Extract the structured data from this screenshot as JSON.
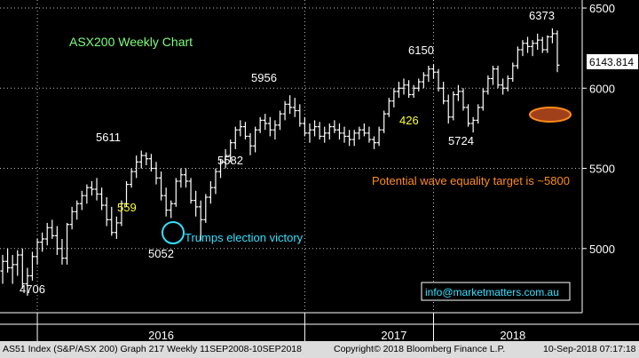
{
  "chart_data": {
    "type": "candlestick",
    "title": "ASX200 Weekly Chart",
    "ylim": [
      4600,
      6550
    ],
    "y_ticks": [
      5000,
      5500,
      6000,
      6500
    ],
    "y_tick_labels": [
      "5000",
      "5500",
      "6000",
      "6500"
    ],
    "x_tick_labels": [
      "2016",
      "2017",
      "2018"
    ],
    "last_price": "6143.814",
    "grid": true,
    "ohlc": [
      [
        4860,
        4960,
        4780,
        4920
      ],
      [
        4920,
        5000,
        4850,
        4880
      ],
      [
        4880,
        4960,
        4780,
        4900
      ],
      [
        4900,
        4990,
        4830,
        4960
      ],
      [
        4960,
        5000,
        4750,
        4780
      ],
      [
        4780,
        4880,
        4706,
        4830
      ],
      [
        4830,
        4980,
        4800,
        4950
      ],
      [
        4950,
        5060,
        4900,
        5040
      ],
      [
        5040,
        5100,
        4980,
        5060
      ],
      [
        5060,
        5160,
        5020,
        5130
      ],
      [
        5130,
        5180,
        5060,
        5080
      ],
      [
        5080,
        5140,
        4960,
        5000
      ],
      [
        5000,
        5060,
        4900,
        4940
      ],
      [
        4940,
        5160,
        4900,
        5150
      ],
      [
        5150,
        5260,
        5120,
        5230
      ],
      [
        5230,
        5300,
        5180,
        5280
      ],
      [
        5280,
        5360,
        5240,
        5330
      ],
      [
        5330,
        5400,
        5280,
        5380
      ],
      [
        5380,
        5420,
        5330,
        5370
      ],
      [
        5370,
        5440,
        5300,
        5340
      ],
      [
        5340,
        5380,
        5240,
        5270
      ],
      [
        5270,
        5320,
        5140,
        5180
      ],
      [
        5180,
        5260,
        5080,
        5100
      ],
      [
        5100,
        5200,
        5060,
        5160
      ],
      [
        5160,
        5300,
        5140,
        5280
      ],
      [
        5280,
        5420,
        5260,
        5400
      ],
      [
        5400,
        5500,
        5380,
        5480
      ],
      [
        5480,
        5580,
        5440,
        5540
      ],
      [
        5540,
        5611,
        5500,
        5580
      ],
      [
        5580,
        5600,
        5520,
        5560
      ],
      [
        5560,
        5590,
        5480,
        5500
      ],
      [
        5500,
        5540,
        5400,
        5440
      ],
      [
        5440,
        5480,
        5300,
        5330
      ],
      [
        5330,
        5380,
        5200,
        5240
      ],
      [
        5240,
        5300,
        5190,
        5280
      ],
      [
        5280,
        5440,
        5260,
        5420
      ],
      [
        5420,
        5500,
        5380,
        5460
      ],
      [
        5460,
        5500,
        5380,
        5420
      ],
      [
        5420,
        5440,
        5280,
        5300
      ],
      [
        5300,
        5360,
        5200,
        5260
      ],
      [
        5260,
        5300,
        5052,
        5180
      ],
      [
        5180,
        5340,
        5160,
        5320
      ],
      [
        5320,
        5420,
        5280,
        5380
      ],
      [
        5380,
        5500,
        5340,
        5480
      ],
      [
        5480,
        5560,
        5440,
        5540
      ],
      [
        5540,
        5620,
        5500,
        5580
      ],
      [
        5580,
        5680,
        5540,
        5660
      ],
      [
        5660,
        5760,
        5620,
        5740
      ],
      [
        5740,
        5800,
        5700,
        5760
      ],
      [
        5760,
        5790,
        5680,
        5700
      ],
      [
        5700,
        5720,
        5582,
        5640
      ],
      [
        5640,
        5760,
        5600,
        5740
      ],
      [
        5740,
        5820,
        5720,
        5800
      ],
      [
        5800,
        5840,
        5740,
        5780
      ],
      [
        5780,
        5820,
        5700,
        5740
      ],
      [
        5740,
        5800,
        5680,
        5770
      ],
      [
        5770,
        5860,
        5740,
        5840
      ],
      [
        5840,
        5920,
        5800,
        5900
      ],
      [
        5900,
        5956,
        5840,
        5880
      ],
      [
        5880,
        5940,
        5820,
        5860
      ],
      [
        5860,
        5900,
        5760,
        5780
      ],
      [
        5780,
        5820,
        5700,
        5720
      ],
      [
        5720,
        5780,
        5660,
        5740
      ],
      [
        5740,
        5800,
        5700,
        5760
      ],
      [
        5760,
        5790,
        5680,
        5700
      ],
      [
        5700,
        5760,
        5660,
        5720
      ],
      [
        5720,
        5780,
        5680,
        5760
      ],
      [
        5760,
        5800,
        5720,
        5740
      ],
      [
        5740,
        5780,
        5680,
        5720
      ],
      [
        5720,
        5760,
        5660,
        5700
      ],
      [
        5700,
        5740,
        5640,
        5680
      ],
      [
        5680,
        5740,
        5640,
        5720
      ],
      [
        5720,
        5760,
        5680,
        5740
      ],
      [
        5740,
        5780,
        5700,
        5720
      ],
      [
        5720,
        5760,
        5660,
        5680
      ],
      [
        5680,
        5700,
        5620,
        5660
      ],
      [
        5660,
        5760,
        5640,
        5740
      ],
      [
        5740,
        5860,
        5720,
        5840
      ],
      [
        5840,
        5940,
        5820,
        5920
      ],
      [
        5920,
        6000,
        5880,
        5980
      ],
      [
        5980,
        6040,
        5940,
        6000
      ],
      [
        6000,
        6060,
        5960,
        6020
      ],
      [
        6020,
        6050,
        5940,
        5960
      ],
      [
        5960,
        6020,
        5940,
        6000
      ],
      [
        6000,
        6060,
        5980,
        6040
      ],
      [
        6040,
        6100,
        6000,
        6080
      ],
      [
        6080,
        6140,
        6040,
        6120
      ],
      [
        6120,
        6150,
        6060,
        6100
      ],
      [
        6100,
        6120,
        5980,
        6000
      ],
      [
        6000,
        6040,
        5900,
        5920
      ],
      [
        5920,
        5960,
        5780,
        5820
      ],
      [
        5820,
        5980,
        5800,
        5960
      ],
      [
        5960,
        6020,
        5920,
        5980
      ],
      [
        5980,
        6000,
        5860,
        5880
      ],
      [
        5880,
        5900,
        5760,
        5780
      ],
      [
        5780,
        5820,
        5724,
        5800
      ],
      [
        5800,
        5900,
        5780,
        5880
      ],
      [
        5880,
        6000,
        5860,
        5980
      ],
      [
        5980,
        6080,
        5960,
        6060
      ],
      [
        6060,
        6140,
        6020,
        6120
      ],
      [
        6120,
        6140,
        6000,
        6020
      ],
      [
        6020,
        6060,
        5960,
        6000
      ],
      [
        6000,
        6080,
        5980,
        6060
      ],
      [
        6060,
        6160,
        6040,
        6140
      ],
      [
        6140,
        6260,
        6120,
        6240
      ],
      [
        6240,
        6300,
        6200,
        6280
      ],
      [
        6280,
        6320,
        6220,
        6260
      ],
      [
        6260,
        6300,
        6200,
        6280
      ],
      [
        6280,
        6340,
        6240,
        6300
      ],
      [
        6300,
        6320,
        6220,
        6240
      ],
      [
        6240,
        6330,
        6220,
        6320
      ],
      [
        6320,
        6373,
        6280,
        6340
      ],
      [
        6340,
        6360,
        6100,
        6143.814
      ]
    ],
    "annotations": {
      "low_2016": "4706",
      "high_2016": "5611",
      "rise_2016": "559",
      "low_election": "5052",
      "low_mid": "5582",
      "high_2017": "5956",
      "rise_2017": "426",
      "high_2018a": "6150",
      "low_2018": "5724",
      "high_2018b": "6373",
      "election_note": "Trumps election victory",
      "target_note": "Potential wave equality target is ~5800",
      "contact": "info@marketmatters.com.au"
    },
    "colors": {
      "background": "#000000",
      "bars": "#ffffff",
      "grid": "#ffffff",
      "title": "#7dff7d",
      "wave_label": "#ffff33",
      "election": "#33e0ff",
      "target": "#ff8c1a",
      "target_ellipse": "#a0401a"
    }
  },
  "footer": {
    "security": "AS51 Index (S&P/ASX 200) Graph 217  Weekly 11SEP2008-10SEP2018",
    "copyright": "Copyright© 2018 Bloomberg Finance L.P.",
    "timestamp": "10-Sep-2018 07:17:18"
  }
}
